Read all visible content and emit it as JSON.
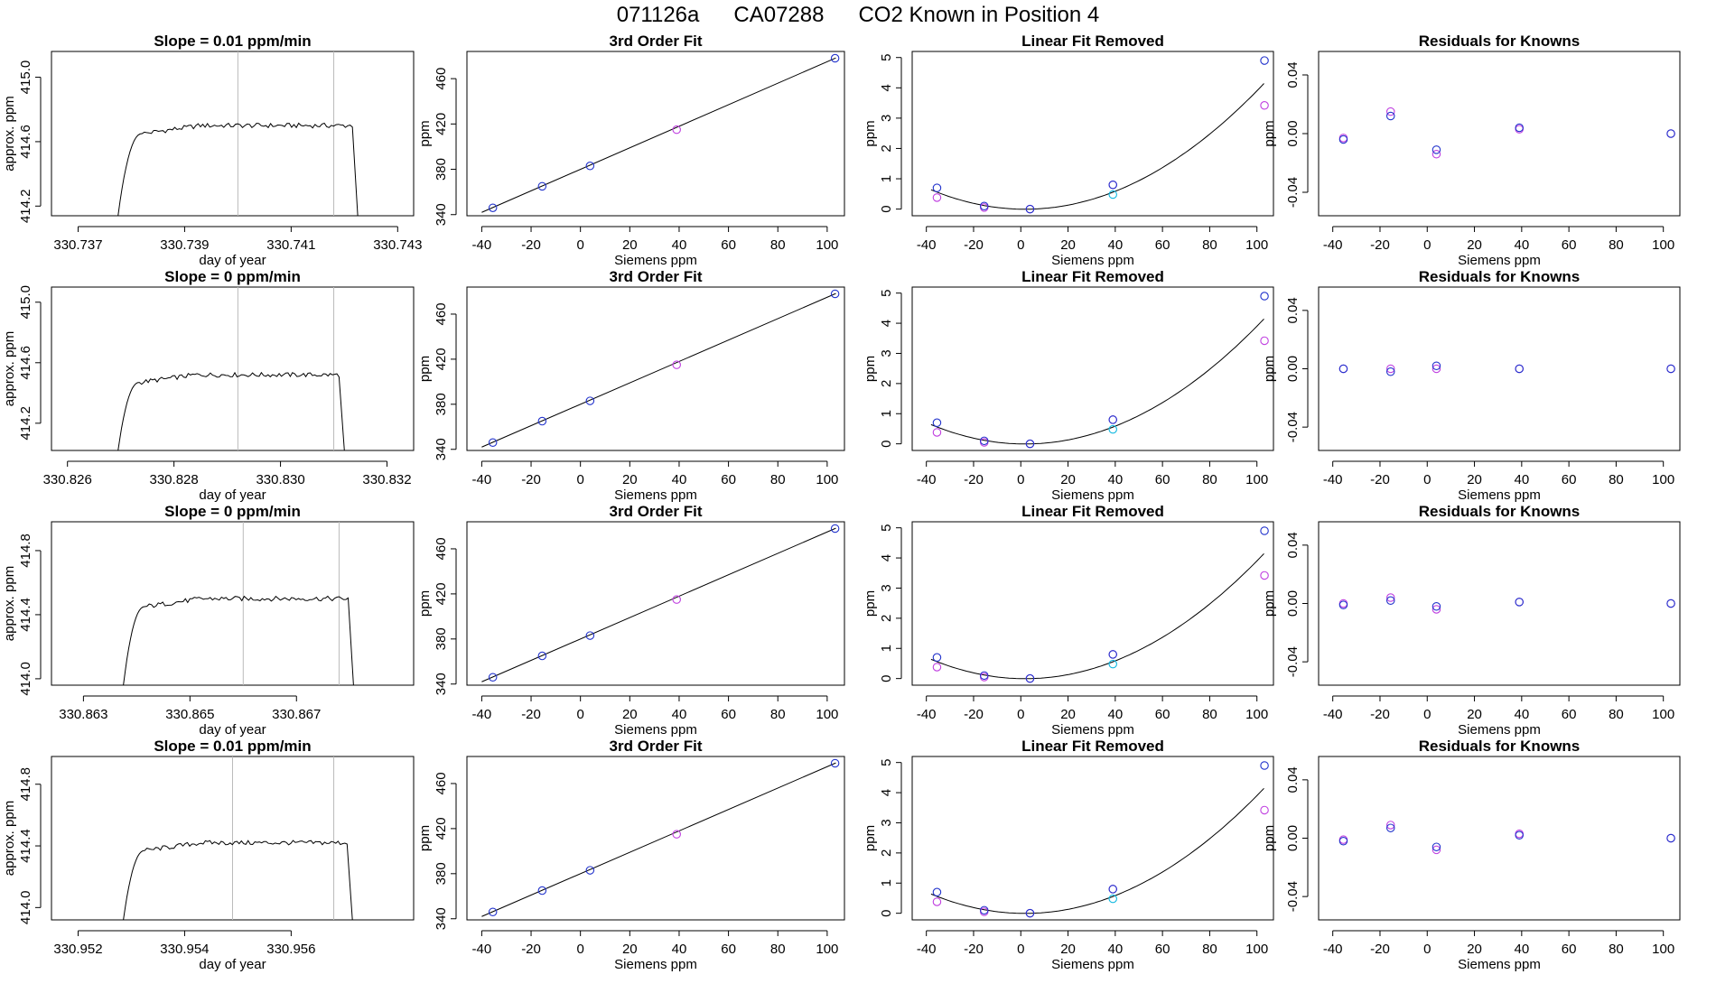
{
  "page_title": {
    "run": "071126a",
    "tank": "CA07288",
    "description": "CO2 Known in Position  4"
  },
  "common": {
    "siemens_x": [
      -35.5,
      -15.5,
      3.9,
      39.0,
      103.2
    ],
    "fit_y": [
      346,
      365,
      383,
      415,
      478
    ],
    "xticks": [
      -40,
      -20,
      0,
      20,
      40,
      60,
      80,
      100
    ],
    "fit_yticks": [
      340,
      380,
      420,
      460
    ],
    "lin_yticks": [
      0,
      1,
      2,
      3,
      4,
      5
    ],
    "res_yticks": [
      "-0.04",
      "0.00",
      "0.04"
    ],
    "lin_blue": [
      0.7,
      0.1,
      0.0,
      0.8,
      4.9
    ],
    "lin_magenta": [
      0.38,
      0.05,
      0.0,
      0.8,
      3.42
    ],
    "lin_cyan": [
      null,
      null,
      null,
      0.48,
      null
    ],
    "colors": {
      "blue": "#2233cc",
      "magenta": "#c040e0",
      "cyan": "#10b8e0",
      "curve": "#000000",
      "divider": "#bbbbbb"
    }
  },
  "rows": [
    {
      "slope_title": "Slope =  0.01  ppm/min",
      "ts": {
        "xticks": [
          "330.737",
          "330.739",
          "330.741",
          "330.743"
        ],
        "xtick_vals": [
          330.737,
          330.739,
          330.741,
          330.743
        ],
        "xlim": [
          330.7365,
          330.7433
        ],
        "yticks": [
          "414.2",
          "414.6",
          "415.0"
        ],
        "ytick_vals": [
          414.2,
          414.6,
          415.0
        ],
        "ylim": [
          414.14,
          415.16
        ],
        "start": 330.73775,
        "plateau_start": 330.7382,
        "end": 330.74225,
        "level": 414.7,
        "vlines": [
          330.74,
          330.7418
        ]
      },
      "res_blue": [
        -0.004,
        0.012,
        -0.011,
        0.004,
        0.0
      ],
      "res_magenta": [
        -0.003,
        0.015,
        -0.014,
        0.003,
        0.0
      ]
    },
    {
      "slope_title": "Slope =  0  ppm/min",
      "ts": {
        "xticks": [
          "330.826",
          "330.828",
          "330.830",
          "330.832"
        ],
        "xtick_vals": [
          330.826,
          330.828,
          330.83,
          330.832
        ],
        "xlim": [
          330.8257,
          330.8325
        ],
        "yticks": [
          "414.2",
          "414.6",
          "415.0"
        ],
        "ytick_vals": [
          414.2,
          414.6,
          415.0
        ],
        "ylim": [
          414.02,
          415.1
        ],
        "start": 330.82695,
        "plateau_start": 330.82735,
        "end": 330.8312,
        "level": 414.52,
        "vlines": [
          330.8292,
          330.831
        ]
      },
      "res_blue": [
        0.0,
        -0.002,
        0.002,
        0.0,
        0.0
      ],
      "res_magenta": [
        0.0,
        0.0,
        0.0,
        0.0,
        0.0
      ]
    },
    {
      "slope_title": "Slope =  0  ppm/min",
      "ts": {
        "xticks": [
          "330.863",
          "330.865",
          "330.867"
        ],
        "xtick_vals": [
          330.863,
          330.865,
          330.867
        ],
        "xlim": [
          330.8624,
          330.8692
        ],
        "yticks": [
          "414.0",
          "414.4",
          "414.8"
        ],
        "ytick_vals": [
          414.0,
          414.4,
          414.8
        ],
        "ylim": [
          413.96,
          414.98
        ],
        "start": 330.86375,
        "plateau_start": 330.86415,
        "end": 330.86807,
        "level": 414.5,
        "vlines": [
          330.866,
          330.8678
        ]
      },
      "res_blue": [
        -0.001,
        0.002,
        -0.002,
        0.001,
        0.0
      ],
      "res_magenta": [
        0.0,
        0.004,
        -0.004,
        0.001,
        0.0
      ]
    },
    {
      "slope_title": "Slope =  0.01  ppm/min",
      "ts": {
        "xticks": [
          "330.952",
          "330.954",
          "330.956"
        ],
        "xtick_vals": [
          330.952,
          330.954,
          330.956
        ],
        "xlim": [
          330.9515,
          330.9583
        ],
        "yticks": [
          "414.0",
          "414.4",
          "414.8"
        ],
        "ytick_vals": [
          414.0,
          414.4,
          414.8
        ],
        "ylim": [
          413.92,
          414.98
        ],
        "start": 330.95285,
        "plateau_start": 330.95325,
        "end": 330.95715,
        "level": 414.42,
        "vlines": [
          330.9549,
          330.9568
        ]
      },
      "res_blue": [
        -0.002,
        0.007,
        -0.006,
        0.002,
        0.0
      ],
      "res_magenta": [
        -0.001,
        0.009,
        -0.008,
        0.003,
        0.0
      ]
    }
  ],
  "labels": {
    "ts_xlabel": "day of year",
    "ts_ylabel": "approx. ppm",
    "fit_title": "3rd Order Fit",
    "fit_ylabel": "ppm",
    "lin_title": "Linear Fit Removed",
    "lin_ylabel": "ppm",
    "res_title": "Residuals for Knowns",
    "res_ylabel": "ppm",
    "siemens_xlabel": "Siemens ppm"
  },
  "chart_data": [
    {
      "type": "line",
      "title": "Slope =  0.01  ppm/min",
      "xlabel": "day of year",
      "ylabel": "approx. ppm",
      "xlim": [
        330.7365,
        330.7433
      ],
      "ylim": [
        414.14,
        415.16
      ],
      "x": [
        330.73775,
        330.7382,
        330.74,
        330.7418,
        330.74225
      ],
      "y": [
        414.14,
        414.65,
        414.7,
        414.7,
        414.14
      ]
    },
    {
      "type": "scatter",
      "title": "3rd Order Fit",
      "xlabel": "Siemens ppm",
      "ylabel": "ppm",
      "x": [
        -35.5,
        -15.5,
        3.9,
        39.0,
        103.2
      ],
      "y": [
        346,
        365,
        383,
        415,
        478
      ]
    },
    {
      "type": "scatter",
      "title": "Linear Fit Removed",
      "xlabel": "Siemens ppm",
      "ylabel": "ppm",
      "x": [
        -35.5,
        -15.5,
        3.9,
        39.0,
        103.2
      ],
      "series": [
        {
          "values": [
            0.7,
            0.1,
            0.0,
            0.8,
            4.9
          ]
        },
        {
          "values": [
            0.38,
            0.05,
            0.0,
            0.8,
            3.42
          ]
        }
      ]
    },
    {
      "type": "scatter",
      "title": "Residuals for Knowns",
      "xlabel": "Siemens ppm",
      "ylabel": "ppm",
      "x": [
        -35.5,
        -15.5,
        3.9,
        39.0,
        103.2
      ],
      "series": [
        {
          "values": [
            -0.004,
            0.012,
            -0.011,
            0.004,
            0.0
          ]
        },
        {
          "values": [
            -0.003,
            0.015,
            -0.014,
            0.003,
            0.0
          ]
        }
      ]
    }
  ]
}
